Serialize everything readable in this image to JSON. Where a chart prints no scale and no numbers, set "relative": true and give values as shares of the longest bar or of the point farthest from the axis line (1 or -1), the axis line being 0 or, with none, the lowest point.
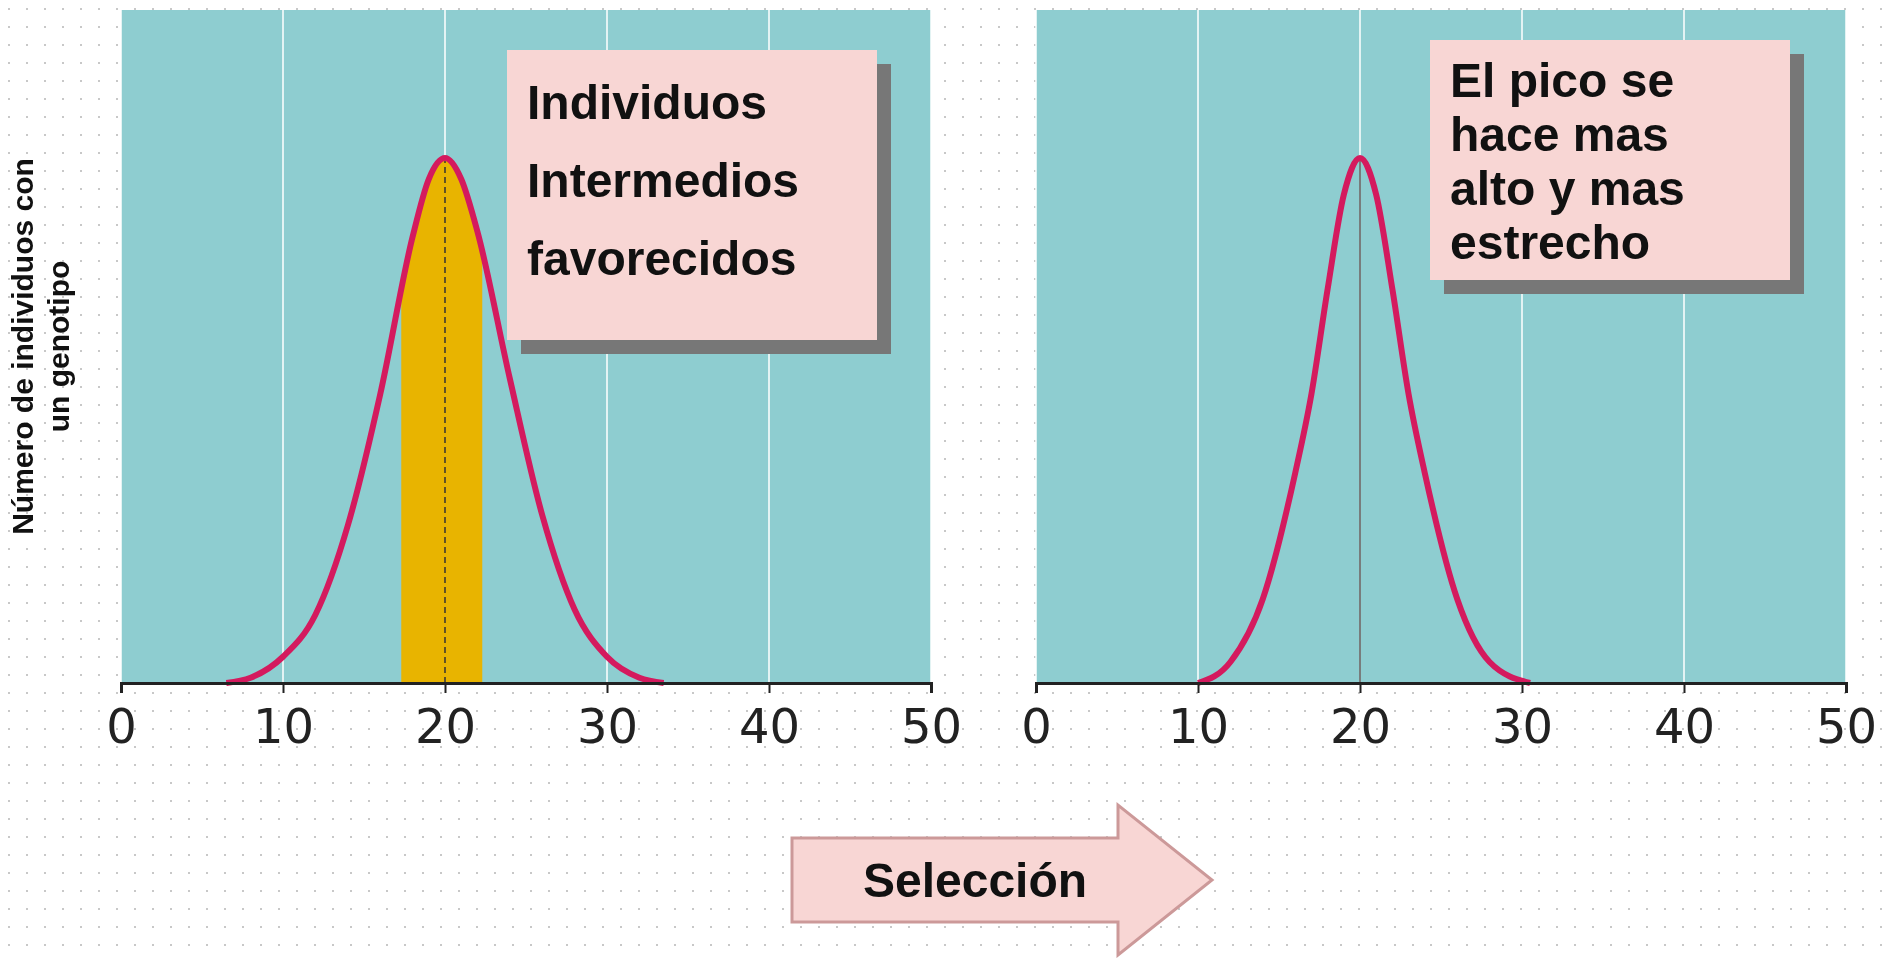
{
  "chart_data": [
    {
      "type": "line",
      "relative": true,
      "ylabel": "Número de individuos con un genotipo",
      "xlim": [
        0,
        50
      ],
      "xticks": [
        0,
        10,
        20,
        30,
        40,
        50
      ],
      "grid": "x",
      "marker": "none",
      "line_style": "solid",
      "series": [
        {
          "color": "#d41a5e",
          "x": [
            6.5,
            8,
            10,
            12,
            14,
            16,
            18,
            19,
            20,
            21,
            22,
            24,
            26,
            28,
            30,
            32,
            33.5
          ],
          "values": [
            0,
            0.01,
            0.05,
            0.13,
            0.3,
            0.55,
            0.85,
            0.96,
            1,
            0.96,
            0.86,
            0.58,
            0.32,
            0.14,
            0.05,
            0.01,
            0
          ]
        }
      ],
      "bands": [
        {
          "axis": "x",
          "from": 17.3,
          "to": 22.3,
          "color": "#e8b400"
        }
      ],
      "ref_lines": [
        {
          "axis": "x",
          "value": 20,
          "color": "#333333",
          "line_style": "dashed"
        }
      ],
      "annotations": [
        "Individuos Intermedios favorecidos",
        "Selección"
      ]
    },
    {
      "type": "line",
      "relative": true,
      "xlim": [
        0,
        50
      ],
      "xticks": [
        0,
        10,
        20,
        30,
        40,
        50
      ],
      "grid": "x",
      "marker": "none",
      "line_style": "solid",
      "series": [
        {
          "color": "#d41a5e",
          "x": [
            10,
            12,
            14,
            16,
            17,
            18,
            19,
            20,
            21,
            22,
            23,
            24,
            26,
            28,
            30.5
          ],
          "values": [
            0,
            0.04,
            0.16,
            0.4,
            0.55,
            0.75,
            0.93,
            1,
            0.93,
            0.75,
            0.55,
            0.4,
            0.16,
            0.04,
            0
          ]
        }
      ],
      "ref_lines": [
        {
          "axis": "x",
          "value": 20,
          "color": "#555555",
          "line_style": "solid"
        }
      ],
      "annotations": [
        "El pico se hace mas alto y mas estrecho"
      ]
    }
  ]
}
